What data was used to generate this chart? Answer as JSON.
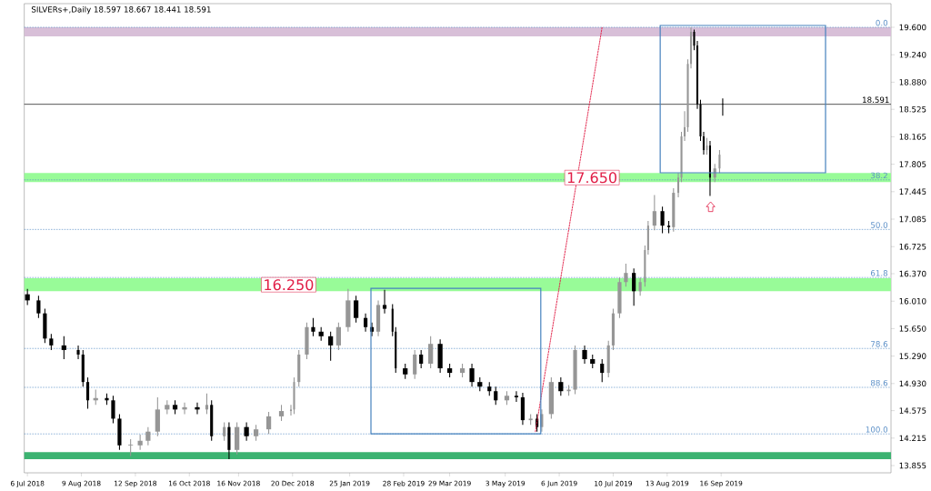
{
  "chart_data": {
    "type": "candlestick",
    "title": "SILVERs+,Daily  18.597 18.667 18.441 18.591",
    "x": [
      "2018-07-06",
      "2018-07-13",
      "2018-07-17",
      "2018-07-21",
      "2018-07-29",
      "2018-08-07",
      "2018-08-10",
      "2018-08-13",
      "2018-08-18",
      "2018-08-25",
      "2018-08-29",
      "2018-09-02",
      "2018-09-09",
      "2018-09-15",
      "2018-09-20",
      "2018-09-26",
      "2018-10-02",
      "2018-10-07",
      "2018-10-13",
      "2018-10-21",
      "2018-10-27",
      "2018-10-30",
      "2018-11-07",
      "2018-11-10",
      "2018-11-15",
      "2018-11-21",
      "2018-11-27",
      "2018-12-05",
      "2018-12-13",
      "2018-12-19",
      "2018-12-21",
      "2018-12-24",
      "2018-12-29",
      "2019-01-02",
      "2019-01-07",
      "2019-01-13",
      "2019-01-18",
      "2019-01-24",
      "2019-01-29",
      "2019-02-04",
      "2019-02-08",
      "2019-02-12",
      "2019-02-16",
      "2019-02-21",
      "2019-02-23",
      "2019-03-01",
      "2019-03-07",
      "2019-03-11",
      "2019-03-17",
      "2019-03-23",
      "2019-03-29",
      "2019-04-06",
      "2019-04-12",
      "2019-04-17",
      "2019-04-23",
      "2019-04-27",
      "2019-05-04",
      "2019-05-10",
      "2019-05-14",
      "2019-05-19",
      "2019-05-23",
      "2019-05-26",
      "2019-06-01",
      "2019-06-07",
      "2019-06-12",
      "2019-06-16",
      "2019-06-22",
      "2019-06-27",
      "2019-07-03",
      "2019-07-07",
      "2019-07-10",
      "2019-07-14",
      "2019-07-18",
      "2019-07-23",
      "2019-07-27",
      "2019-07-30",
      "2019-08-01",
      "2019-08-05",
      "2019-08-10",
      "2019-08-14",
      "2019-08-17",
      "2019-08-20",
      "2019-08-22",
      "2019-08-24",
      "2019-08-26",
      "2019-08-28",
      "2019-08-30",
      "2019-09-01",
      "2019-09-03",
      "2019-09-05",
      "2019-09-07",
      "2019-09-09",
      "2019-09-12",
      "2019-09-15",
      "2019-09-17"
    ],
    "ohlc": [
      [
        16.1,
        16.17,
        15.96,
        16.02
      ],
      [
        16.02,
        16.08,
        15.79,
        15.85
      ],
      [
        15.85,
        15.91,
        15.46,
        15.52
      ],
      [
        15.52,
        15.58,
        15.37,
        15.43
      ],
      [
        15.43,
        15.55,
        15.25,
        15.37
      ],
      [
        15.37,
        15.43,
        15.25,
        15.31
      ],
      [
        15.31,
        15.37,
        14.89,
        14.95
      ],
      [
        14.95,
        15.01,
        14.6,
        14.71
      ],
      [
        14.71,
        14.85,
        14.65,
        14.74
      ],
      [
        14.74,
        14.8,
        14.65,
        14.71
      ],
      [
        14.71,
        14.77,
        14.41,
        14.47
      ],
      [
        14.47,
        14.53,
        14.06,
        14.12
      ],
      [
        14.12,
        14.2,
        13.98,
        14.12
      ],
      [
        14.12,
        14.26,
        14.06,
        14.18
      ],
      [
        14.18,
        14.36,
        14.12,
        14.3
      ],
      [
        14.3,
        14.75,
        14.24,
        14.59
      ],
      [
        14.59,
        14.71,
        14.53,
        14.65
      ],
      [
        14.65,
        14.71,
        14.53,
        14.59
      ],
      [
        14.59,
        14.68,
        14.53,
        14.62
      ],
      [
        14.62,
        14.68,
        14.53,
        14.59
      ],
      [
        14.59,
        14.8,
        14.53,
        14.65
      ],
      [
        14.65,
        14.71,
        14.18,
        14.24
      ],
      [
        14.24,
        14.42,
        14.18,
        14.36
      ],
      [
        14.36,
        14.42,
        13.94,
        14.06
      ],
      [
        14.06,
        14.42,
        14.0,
        14.36
      ],
      [
        14.36,
        14.42,
        14.18,
        14.24
      ],
      [
        14.24,
        14.39,
        14.18,
        14.33
      ],
      [
        14.33,
        14.56,
        14.27,
        14.5
      ],
      [
        14.5,
        14.65,
        14.44,
        14.57
      ],
      [
        14.57,
        14.65,
        14.51,
        14.59
      ],
      [
        14.59,
        15.01,
        14.53,
        14.95
      ],
      [
        14.95,
        15.37,
        14.89,
        15.31
      ],
      [
        15.31,
        15.73,
        15.25,
        15.67
      ],
      [
        15.67,
        15.79,
        15.55,
        15.61
      ],
      [
        15.61,
        15.67,
        15.49,
        15.55
      ],
      [
        15.55,
        15.61,
        15.23,
        15.43
      ],
      [
        15.43,
        15.73,
        15.37,
        15.67
      ],
      [
        15.67,
        16.17,
        15.61,
        16.02
      ],
      [
        16.02,
        16.08,
        15.73,
        15.79
      ],
      [
        15.79,
        15.85,
        15.61,
        15.67
      ],
      [
        15.67,
        15.73,
        15.55,
        15.61
      ],
      [
        15.61,
        16.02,
        15.55,
        15.96
      ],
      [
        15.96,
        16.16,
        15.85,
        15.91
      ],
      [
        15.91,
        15.97,
        15.55,
        15.61
      ],
      [
        15.61,
        15.67,
        15.07,
        15.13
      ],
      [
        15.13,
        15.19,
        14.99,
        15.05
      ],
      [
        15.05,
        15.37,
        14.99,
        15.31
      ],
      [
        15.31,
        15.37,
        15.13,
        15.19
      ],
      [
        15.19,
        15.55,
        15.13,
        15.45
      ],
      [
        15.45,
        15.51,
        15.07,
        15.13
      ],
      [
        15.13,
        15.19,
        15.01,
        15.07
      ],
      [
        15.07,
        15.19,
        15.01,
        15.13
      ],
      [
        15.13,
        15.19,
        14.89,
        14.95
      ],
      [
        14.95,
        15.01,
        14.83,
        14.89
      ],
      [
        14.89,
        14.95,
        14.77,
        14.83
      ],
      [
        14.83,
        14.89,
        14.65,
        14.71
      ],
      [
        14.71,
        14.83,
        14.65,
        14.77
      ],
      [
        14.77,
        14.83,
        14.69,
        14.75
      ],
      [
        14.75,
        14.81,
        14.39,
        14.45
      ],
      [
        14.45,
        14.53,
        14.39,
        14.47
      ],
      [
        14.47,
        14.53,
        14.3,
        14.36
      ],
      [
        14.36,
        14.59,
        14.3,
        14.53
      ],
      [
        14.53,
        15.01,
        14.47,
        14.95
      ],
      [
        14.95,
        15.01,
        14.77,
        14.83
      ],
      [
        14.83,
        14.91,
        14.77,
        14.85
      ],
      [
        14.85,
        15.43,
        14.79,
        15.37
      ],
      [
        15.37,
        15.43,
        15.19,
        15.25
      ],
      [
        15.25,
        15.31,
        15.13,
        15.19
      ],
      [
        15.19,
        15.25,
        14.95,
        15.07
      ],
      [
        15.07,
        15.49,
        15.01,
        15.43
      ],
      [
        15.43,
        15.91,
        15.37,
        15.85
      ],
      [
        15.85,
        16.32,
        15.79,
        16.26
      ],
      [
        16.26,
        16.5,
        16.2,
        16.38
      ],
      [
        16.38,
        16.44,
        15.95,
        16.14
      ],
      [
        16.14,
        16.32,
        16.08,
        16.26
      ],
      [
        16.26,
        16.74,
        16.2,
        16.68
      ],
      [
        16.68,
        17.06,
        16.62,
        17.0
      ],
      [
        17.0,
        17.4,
        16.94,
        17.19
      ],
      [
        17.19,
        17.25,
        16.9,
        17.0
      ],
      [
        17.0,
        17.06,
        16.9,
        16.98
      ],
      [
        16.98,
        17.49,
        16.92,
        17.43
      ],
      [
        17.43,
        17.69,
        17.37,
        17.63
      ],
      [
        17.63,
        18.23,
        17.57,
        18.17
      ],
      [
        18.17,
        18.5,
        18.11,
        18.29
      ],
      [
        18.29,
        19.18,
        18.23,
        19.12
      ],
      [
        19.12,
        19.6,
        19.06,
        19.54
      ],
      [
        19.54,
        19.57,
        19.3,
        19.36
      ],
      [
        19.36,
        19.42,
        18.53,
        18.59
      ],
      [
        18.59,
        18.65,
        18.11,
        18.17
      ],
      [
        18.17,
        18.23,
        17.93,
        17.99
      ],
      [
        17.99,
        18.15,
        17.93,
        18.05
      ],
      [
        18.05,
        18.11,
        17.39,
        17.63
      ],
      [
        17.63,
        17.81,
        17.57,
        17.75
      ],
      [
        17.75,
        17.99,
        17.69,
        17.93
      ],
      [
        18.597,
        18.667,
        18.441,
        18.591
      ]
    ],
    "xlim": [
      "2018-07-04",
      "2020-01-01"
    ],
    "ylim": [
      13.76,
      19.91
    ],
    "xticks": [
      {
        "value": "2018-07-06",
        "label": "6 Jul 2018"
      },
      {
        "value": "2018-08-09",
        "label": "9 Aug 2018"
      },
      {
        "value": "2018-09-12",
        "label": "12 Sep 2018"
      },
      {
        "value": "2018-10-16",
        "label": "16 Oct 2018"
      },
      {
        "value": "2018-11-16",
        "label": "16 Nov 2018"
      },
      {
        "value": "2018-12-20",
        "label": "20 Dec 2018"
      },
      {
        "value": "2019-01-25",
        "label": "25 Jan 2019"
      },
      {
        "value": "2019-02-28",
        "label": "28 Feb 2019"
      },
      {
        "value": "2019-03-29",
        "label": "29 Mar 2019"
      },
      {
        "value": "2019-05-03",
        "label": "3 May 2019"
      },
      {
        "value": "2019-06-06",
        "label": "6 Jun 2019"
      },
      {
        "value": "2019-07-10",
        "label": "10 Jul 2019"
      },
      {
        "value": "2019-08-13",
        "label": "13 Aug 2019"
      },
      {
        "value": "2019-09-16",
        "label": "16 Sep 2019"
      }
    ],
    "yticks": [
      {
        "value": 19.6,
        "label": "19.600"
      },
      {
        "value": 19.24,
        "label": "19.240"
      },
      {
        "value": 18.88,
        "label": "18.880"
      },
      {
        "value": 18.525,
        "label": "18.525"
      },
      {
        "value": 18.165,
        "label": "18.165"
      },
      {
        "value": 17.805,
        "label": "17.805"
      },
      {
        "value": 17.445,
        "label": "17.445"
      },
      {
        "value": 17.085,
        "label": "17.085"
      },
      {
        "value": 16.725,
        "label": "16.725"
      },
      {
        "value": 16.37,
        "label": "16.370"
      },
      {
        "value": 16.01,
        "label": "16.010"
      },
      {
        "value": 15.65,
        "label": "15.650"
      },
      {
        "value": 15.29,
        "label": "15.290"
      },
      {
        "value": 14.93,
        "label": "14.930"
      },
      {
        "value": 14.575,
        "label": "14.575"
      },
      {
        "value": 14.215,
        "label": "14.215"
      },
      {
        "value": 13.855,
        "label": "13.855"
      }
    ],
    "bands": [
      {
        "axis": "y",
        "from": 13.94,
        "to": 14.03,
        "color": "#3cb371"
      },
      {
        "axis": "y",
        "from": 16.14,
        "to": 16.31,
        "label": "16.250",
        "color": "#98fb98"
      },
      {
        "axis": "y",
        "from": 17.57,
        "to": 17.69,
        "label": "17.650",
        "color": "#98fb98"
      },
      {
        "axis": "y",
        "from": 19.48,
        "to": 19.6,
        "color": "#d8bfd8"
      }
    ],
    "series": [
      {
        "type": "line",
        "x": [
          "2019-05-22",
          "2019-07-03"
        ],
        "values": [
          14.3,
          19.6
        ],
        "color": "#e11e46",
        "line_style": "dotted"
      }
    ],
    "annotations": [
      {
        "text": "0.0",
        "x": "2019-12-31",
        "y": 19.6
      },
      {
        "text": "38.2",
        "x": "2019-12-31",
        "y": 17.6
      },
      {
        "text": "50.0",
        "x": "2019-12-31",
        "y": 16.95
      },
      {
        "text": "61.8",
        "x": "2019-12-31",
        "y": 16.32
      },
      {
        "text": "78.6",
        "x": "2019-12-31",
        "y": 15.39
      },
      {
        "text": "88.6",
        "x": "2019-12-31",
        "y": 14.88
      },
      {
        "text": "100.0",
        "x": "2019-12-31",
        "y": 14.27
      }
    ],
    "ref_lines": [
      {
        "axis": "y",
        "value": 19.6,
        "color": "#5b8fc7",
        "line_style": "dotted"
      },
      {
        "axis": "y",
        "value": 17.6,
        "color": "#5b8fc7",
        "line_style": "dotted"
      },
      {
        "axis": "y",
        "value": 16.95,
        "color": "#5b8fc7",
        "line_style": "dotted"
      },
      {
        "axis": "y",
        "value": 16.32,
        "color": "#5b8fc7",
        "line_style": "dotted"
      },
      {
        "axis": "y",
        "value": 15.39,
        "color": "#5b8fc7",
        "line_style": "dotted"
      },
      {
        "axis": "y",
        "value": 14.88,
        "color": "#5b8fc7",
        "line_style": "dotted"
      },
      {
        "axis": "y",
        "value": 14.27,
        "color": "#5b8fc7",
        "line_style": "dotted"
      },
      {
        "axis": "y",
        "value": 18.591,
        "label": "18.591",
        "color": "#000000",
        "line_style": "solid"
      }
    ]
  }
}
